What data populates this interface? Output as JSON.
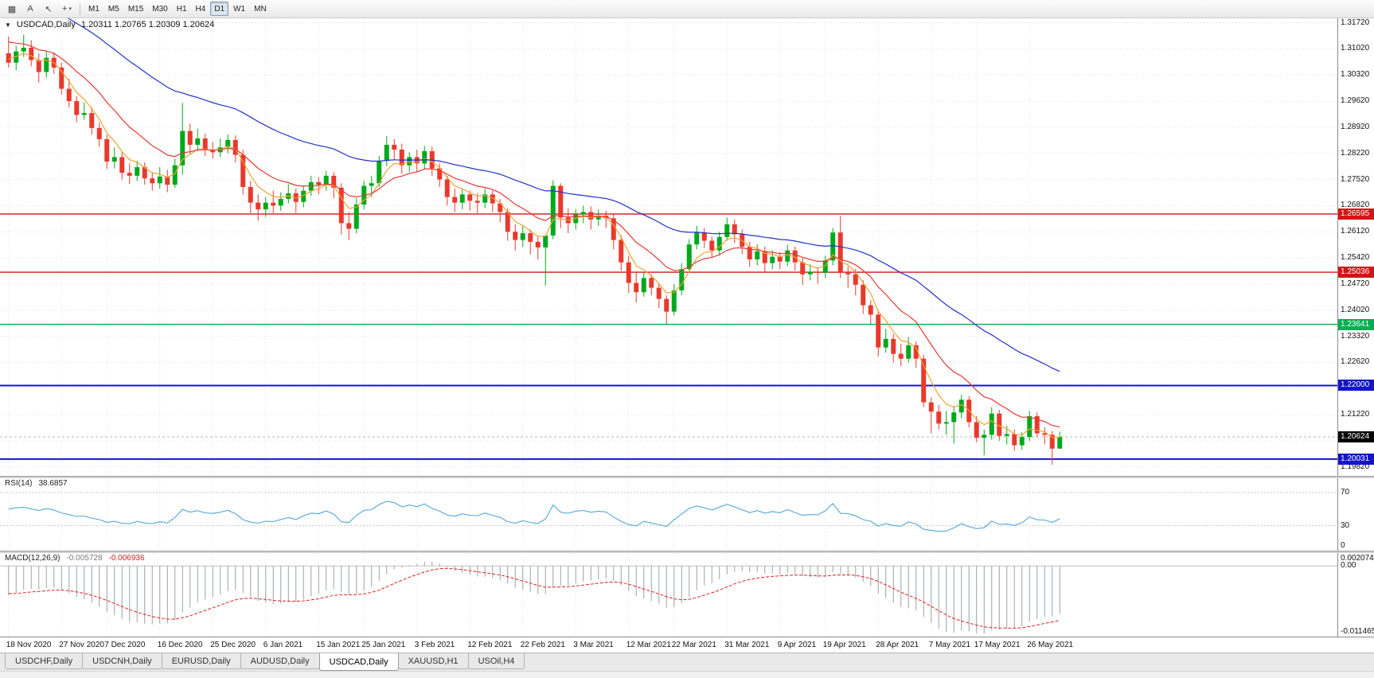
{
  "window": {
    "toolbar": {
      "left_icons": [
        {
          "name": "chart-menu-icon",
          "glyph": "▦"
        },
        {
          "name": "text-annotation-icon",
          "glyph": "A"
        },
        {
          "name": "cursor-tool-icon",
          "glyph": "↖"
        },
        {
          "name": "crosshair-tool-icon",
          "glyph": "+",
          "caret": "▾"
        }
      ],
      "timeframes": [
        "M1",
        "M5",
        "M15",
        "M30",
        "H1",
        "H4",
        "D1",
        "W1",
        "MN"
      ],
      "active_timeframe": "D1"
    },
    "tabs": {
      "items": [
        "USDCHF,Daily",
        "USDCNH,Daily",
        "EURUSD,Daily",
        "AUDUSD,Daily",
        "USDCAD,Daily",
        "XAUUSD,H1",
        "USOil,H4"
      ],
      "active": "USDCAD,Daily"
    }
  },
  "chart": {
    "type": "candlestick",
    "title": {
      "collapse_glyph": "▼",
      "symbol": "USDCAD,Daily",
      "ohlc": "1.20311 1.20765 1.20309 1.20624"
    },
    "price_scale": {
      "max": 1.3186,
      "min": 1.1958,
      "labels": [
        "1.31720",
        "1.31020",
        "1.30320",
        "1.29620",
        "1.28920",
        "1.28220",
        "1.27520",
        "1.26820",
        "1.26120",
        "1.25420",
        "1.24720",
        "1.24020",
        "1.23320",
        "1.22620",
        "1.21920",
        "1.21220",
        "1.20520",
        "1.19820"
      ]
    },
    "levels": [
      {
        "label": "1.26595",
        "price": 1.26595,
        "color": "#d01616",
        "width": 1.4
      },
      {
        "label": "1.25036",
        "price": 1.25036,
        "color": "#d01616",
        "width": 1.4
      },
      {
        "label": "1.23641",
        "price": 1.23641,
        "color": "#00b050",
        "width": 1.4
      },
      {
        "label": "1.22000",
        "price": 1.22,
        "color": "#1414c8",
        "width": 2
      },
      {
        "label": "1.20031",
        "price": 1.20031,
        "color": "#1414c8",
        "width": 2
      }
    ],
    "current_price": {
      "label": "1.20624",
      "price": 1.20624,
      "bg": "#000000"
    },
    "colors": {
      "up": "#00a81c",
      "down": "#e8392e",
      "grid": "#e0e0e0",
      "bid_line": "#b4b4b4"
    },
    "moving_averages": [
      {
        "name": "ma-fast",
        "period": 5,
        "seed": 1.308,
        "color": "#efa432"
      },
      {
        "name": "ma-mid",
        "period": 13,
        "seed": 1.313,
        "color": "#e53935"
      },
      {
        "name": "ma-slow",
        "period": 40,
        "seed": 1.326,
        "color": "#2432c8"
      }
    ],
    "date_axis": [
      {
        "i": 0,
        "t": "18 Nov 2020"
      },
      {
        "i": 7,
        "t": "27 Nov 2020"
      },
      {
        "i": 13,
        "t": "7 Dec 2020"
      },
      {
        "i": 20,
        "t": "16 Dec 2020"
      },
      {
        "i": 27,
        "t": "25 Dec 2020"
      },
      {
        "i": 34,
        "t": "6 Jan 2021"
      },
      {
        "i": 41,
        "t": "15 Jan 2021"
      },
      {
        "i": 47,
        "t": "25 Jan 2021"
      },
      {
        "i": 54,
        "t": "3 Feb 2021"
      },
      {
        "i": 61,
        "t": "12 Feb 2021"
      },
      {
        "i": 68,
        "t": "22 Feb 2021"
      },
      {
        "i": 75,
        "t": "3 Mar 2021"
      },
      {
        "i": 82,
        "t": "12 Mar 2021"
      },
      {
        "i": 88,
        "t": "22 Mar 2021"
      },
      {
        "i": 95,
        "t": "31 Mar 2021"
      },
      {
        "i": 102,
        "t": "9 Apr 2021"
      },
      {
        "i": 108,
        "t": "19 Apr 2021"
      },
      {
        "i": 115,
        "t": "28 Apr 2021"
      },
      {
        "i": 122,
        "t": "7 May 2021"
      },
      {
        "i": 128,
        "t": "17 May 2021"
      },
      {
        "i": 135,
        "t": "26 May 2021"
      }
    ],
    "candles": [
      [
        1.309,
        1.3135,
        1.3052,
        1.3065
      ],
      [
        1.3065,
        1.311,
        1.3045,
        1.3095
      ],
      [
        1.3095,
        1.314,
        1.308,
        1.3105
      ],
      [
        1.3105,
        1.3125,
        1.3055,
        1.3072
      ],
      [
        1.3072,
        1.309,
        1.3012,
        1.304
      ],
      [
        1.304,
        1.3095,
        1.3025,
        1.3078
      ],
      [
        1.3078,
        1.3092,
        1.3035,
        1.3052
      ],
      [
        1.3052,
        1.3065,
        1.298,
        1.2995
      ],
      [
        1.2995,
        1.3022,
        1.2945,
        1.2962
      ],
      [
        1.2962,
        1.2975,
        1.2905,
        1.2925
      ],
      [
        1.2925,
        1.2958,
        1.2912,
        1.293
      ],
      [
        1.293,
        1.2945,
        1.2872,
        1.289
      ],
      [
        1.289,
        1.2905,
        1.284,
        1.286
      ],
      [
        1.286,
        1.2872,
        1.278,
        1.28
      ],
      [
        1.28,
        1.2838,
        1.2782,
        1.2812
      ],
      [
        1.2812,
        1.2825,
        1.2752,
        1.277
      ],
      [
        1.277,
        1.2795,
        1.274,
        1.2762
      ],
      [
        1.2762,
        1.2802,
        1.2748,
        1.2785
      ],
      [
        1.2785,
        1.2798,
        1.2738,
        1.2755
      ],
      [
        1.2755,
        1.2772,
        1.2722,
        1.2742
      ],
      [
        1.2742,
        1.2785,
        1.2728,
        1.276
      ],
      [
        1.276,
        1.2778,
        1.2718,
        1.2738
      ],
      [
        1.2738,
        1.2808,
        1.273,
        1.279
      ],
      [
        1.279,
        1.2957,
        1.2765,
        1.2882
      ],
      [
        1.2882,
        1.2902,
        1.282,
        1.2845
      ],
      [
        1.2845,
        1.2888,
        1.2828,
        1.2862
      ],
      [
        1.2862,
        1.2875,
        1.2815,
        1.2832
      ],
      [
        1.2832,
        1.2852,
        1.2808,
        1.2825
      ],
      [
        1.2825,
        1.2862,
        1.2812,
        1.2838
      ],
      [
        1.2838,
        1.2872,
        1.2822,
        1.2858
      ],
      [
        1.2858,
        1.287,
        1.2798,
        1.2818
      ],
      [
        1.2818,
        1.2832,
        1.2712,
        1.2732
      ],
      [
        1.2732,
        1.2748,
        1.2662,
        1.269
      ],
      [
        1.269,
        1.2712,
        1.2642,
        1.2672
      ],
      [
        1.2672,
        1.2705,
        1.2652,
        1.269
      ],
      [
        1.269,
        1.2722,
        1.2662,
        1.2682
      ],
      [
        1.2682,
        1.2718,
        1.2668,
        1.27
      ],
      [
        1.27,
        1.274,
        1.2688,
        1.2715
      ],
      [
        1.2715,
        1.2728,
        1.2662,
        1.2692
      ],
      [
        1.2692,
        1.2735,
        1.2678,
        1.2722
      ],
      [
        1.2722,
        1.2762,
        1.2708,
        1.2745
      ],
      [
        1.2745,
        1.2758,
        1.2712,
        1.2738
      ],
      [
        1.2738,
        1.2775,
        1.2722,
        1.2762
      ],
      [
        1.2762,
        1.2772,
        1.2702,
        1.273
      ],
      [
        1.273,
        1.2742,
        1.2605,
        1.2635
      ],
      [
        1.2635,
        1.2665,
        1.259,
        1.262
      ],
      [
        1.262,
        1.2702,
        1.2608,
        1.2685
      ],
      [
        1.2685,
        1.2748,
        1.2672,
        1.2735
      ],
      [
        1.2735,
        1.2762,
        1.2705,
        1.2742
      ],
      [
        1.2742,
        1.2815,
        1.2732,
        1.2802
      ],
      [
        1.2802,
        1.2868,
        1.2788,
        1.2845
      ],
      [
        1.2845,
        1.286,
        1.2805,
        1.2832
      ],
      [
        1.2832,
        1.2848,
        1.2768,
        1.279
      ],
      [
        1.279,
        1.2825,
        1.2772,
        1.2812
      ],
      [
        1.2812,
        1.2832,
        1.2772,
        1.2795
      ],
      [
        1.2795,
        1.2842,
        1.278,
        1.2828
      ],
      [
        1.2828,
        1.284,
        1.2762,
        1.2782
      ],
      [
        1.2782,
        1.2795,
        1.2732,
        1.2752
      ],
      [
        1.2752,
        1.2762,
        1.2682,
        1.2705
      ],
      [
        1.2705,
        1.2728,
        1.2665,
        1.269
      ],
      [
        1.269,
        1.2725,
        1.2672,
        1.2712
      ],
      [
        1.2712,
        1.2722,
        1.2668,
        1.2695
      ],
      [
        1.2695,
        1.2715,
        1.2662,
        1.269
      ],
      [
        1.269,
        1.2728,
        1.2675,
        1.2712
      ],
      [
        1.2712,
        1.2722,
        1.2665,
        1.2688
      ],
      [
        1.2688,
        1.27,
        1.2638,
        1.2665
      ],
      [
        1.2665,
        1.2675,
        1.2588,
        1.2612
      ],
      [
        1.2612,
        1.2632,
        1.2562,
        1.259
      ],
      [
        1.259,
        1.2628,
        1.2572,
        1.2608
      ],
      [
        1.2608,
        1.2618,
        1.2552,
        1.2585
      ],
      [
        1.2585,
        1.2598,
        1.2538,
        1.257
      ],
      [
        1.257,
        1.2588,
        1.2468,
        1.2602
      ],
      [
        1.2602,
        1.275,
        1.2592,
        1.2735
      ],
      [
        1.2735,
        1.2742,
        1.2622,
        1.265
      ],
      [
        1.265,
        1.2675,
        1.2608,
        1.2635
      ],
      [
        1.2635,
        1.2672,
        1.2618,
        1.2658
      ],
      [
        1.2658,
        1.2682,
        1.2635,
        1.2665
      ],
      [
        1.2665,
        1.268,
        1.2618,
        1.2645
      ],
      [
        1.2645,
        1.2672,
        1.2628,
        1.2655
      ],
      [
        1.2655,
        1.2668,
        1.2622,
        1.2648
      ],
      [
        1.2648,
        1.2658,
        1.2565,
        1.259
      ],
      [
        1.259,
        1.2602,
        1.2508,
        1.253
      ],
      [
        1.253,
        1.2548,
        1.2448,
        1.2475
      ],
      [
        1.2475,
        1.2502,
        1.2422,
        1.245
      ],
      [
        1.245,
        1.2505,
        1.2438,
        1.2488
      ],
      [
        1.2488,
        1.2498,
        1.2442,
        1.2462
      ],
      [
        1.2462,
        1.2475,
        1.2408,
        1.2432
      ],
      [
        1.2432,
        1.2442,
        1.2365,
        1.2398
      ],
      [
        1.2398,
        1.2472,
        1.2388,
        1.2455
      ],
      [
        1.2455,
        1.2528,
        1.2442,
        1.2512
      ],
      [
        1.2512,
        1.2592,
        1.2502,
        1.2578
      ],
      [
        1.2578,
        1.2628,
        1.2565,
        1.261
      ],
      [
        1.261,
        1.2622,
        1.2568,
        1.2588
      ],
      [
        1.2588,
        1.26,
        1.2542,
        1.2562
      ],
      [
        1.2562,
        1.2612,
        1.2548,
        1.2598
      ],
      [
        1.2598,
        1.265,
        1.2588,
        1.2632
      ],
      [
        1.2632,
        1.2645,
        1.2582,
        1.2605
      ],
      [
        1.2605,
        1.2618,
        1.2552,
        1.2572
      ],
      [
        1.2572,
        1.2585,
        1.2518,
        1.2538
      ],
      [
        1.2538,
        1.2578,
        1.2522,
        1.256
      ],
      [
        1.256,
        1.2572,
        1.2505,
        1.2528
      ],
      [
        1.2528,
        1.2562,
        1.2512,
        1.2545
      ],
      [
        1.2545,
        1.2558,
        1.2512,
        1.2532
      ],
      [
        1.2532,
        1.2578,
        1.252,
        1.2562
      ],
      [
        1.2562,
        1.2572,
        1.2508,
        1.253
      ],
      [
        1.253,
        1.2542,
        1.247,
        1.2498
      ],
      [
        1.2498,
        1.2525,
        1.2482,
        1.2505
      ],
      [
        1.2505,
        1.2518,
        1.2472,
        1.2502
      ],
      [
        1.2502,
        1.2548,
        1.2488,
        1.2535
      ],
      [
        1.2535,
        1.2622,
        1.2522,
        1.261
      ],
      [
        1.261,
        1.2654,
        1.2488,
        1.2502
      ],
      [
        1.2502,
        1.2518,
        1.2462,
        1.2498
      ],
      [
        1.2498,
        1.2512,
        1.2442,
        1.247
      ],
      [
        1.247,
        1.2482,
        1.2392,
        1.2415
      ],
      [
        1.2415,
        1.2428,
        1.2365,
        1.239
      ],
      [
        1.239,
        1.2402,
        1.2278,
        1.2302
      ],
      [
        1.2302,
        1.2352,
        1.2288,
        1.2325
      ],
      [
        1.2325,
        1.2338,
        1.2262,
        1.2285
      ],
      [
        1.2285,
        1.2312,
        1.2252,
        1.2272
      ],
      [
        1.2272,
        1.233,
        1.2262,
        1.2308
      ],
      [
        1.2308,
        1.2318,
        1.2248,
        1.2272
      ],
      [
        1.2272,
        1.2282,
        1.2142,
        1.2155
      ],
      [
        1.2155,
        1.2168,
        1.2072,
        1.213
      ],
      [
        1.213,
        1.2148,
        1.2082,
        1.2098
      ],
      [
        1.2098,
        1.2132,
        1.2068,
        1.2102
      ],
      [
        1.2102,
        1.2145,
        1.2045,
        1.2128
      ],
      [
        1.2128,
        1.2175,
        1.2112,
        1.2162
      ],
      [
        1.2162,
        1.2172,
        1.2088,
        1.2102
      ],
      [
        1.2102,
        1.2118,
        1.2048,
        1.206
      ],
      [
        1.206,
        1.2082,
        1.2013,
        1.2068
      ],
      [
        1.2068,
        1.2142,
        1.2055,
        1.2125
      ],
      [
        1.2125,
        1.2135,
        1.2052,
        1.2065
      ],
      [
        1.2065,
        1.2092,
        1.2042,
        1.207
      ],
      [
        1.207,
        1.2082,
        1.2025,
        1.204
      ],
      [
        1.204,
        1.2075,
        1.2028,
        1.2062
      ],
      [
        1.2062,
        1.2132,
        1.2052,
        1.2118
      ],
      [
        1.2118,
        1.2128,
        1.2062,
        1.2072
      ],
      [
        1.2072,
        1.2088,
        1.2042,
        1.2068
      ],
      [
        1.2068,
        1.2078,
        1.1988,
        1.2031
      ],
      [
        1.20311,
        1.20765,
        1.20309,
        1.20624
      ]
    ]
  },
  "rsi": {
    "label": "RSI(14)",
    "value_text": "38.6857",
    "period": 14,
    "seed": 0.0035,
    "color": "#53a6d8",
    "levels": [
      70,
      30
    ],
    "scale_labels": [
      "70",
      "30",
      "0"
    ],
    "max": 88
  },
  "macd": {
    "label": "MACD(12,26,9)",
    "value1": "-0.005728",
    "value2": "-0.006936",
    "fast": 12,
    "slow": 26,
    "signal": 9,
    "seed_fast": 1.309,
    "seed_slow": 1.314,
    "seed_signal": -0.0045,
    "hist_color": "#9aa0a6",
    "signal_color": "#e02020",
    "scale_top": 0.002074,
    "scale_bottom": -0.011465,
    "scale_labels": [
      "0.002074",
      "0.00",
      "-0.011465"
    ]
  }
}
